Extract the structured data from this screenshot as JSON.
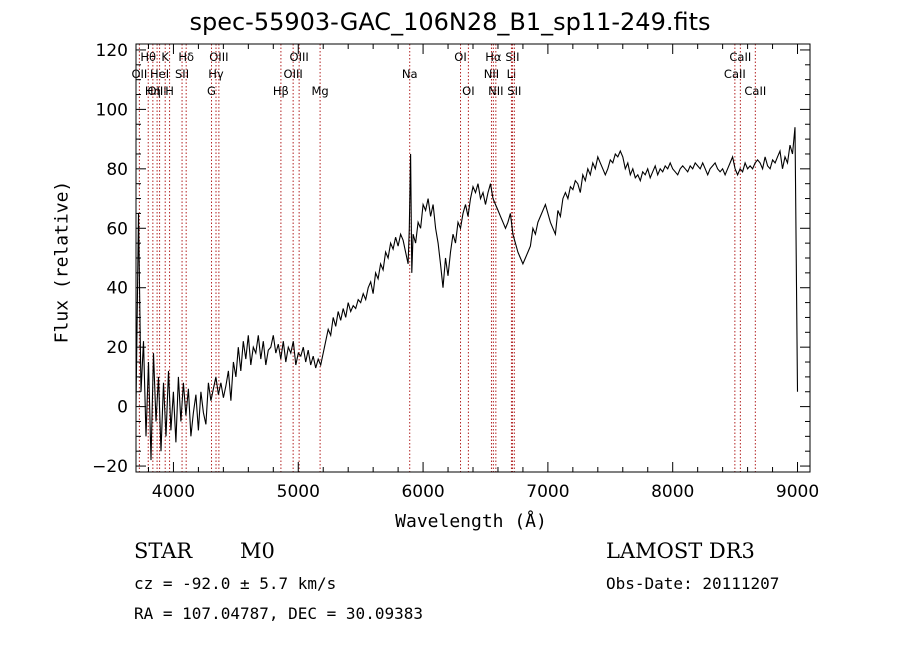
{
  "chart_data": {
    "type": "line",
    "title": "spec-55903-GAC_106N28_B1_sp11-249.fits",
    "xlabel": "Wavelength (Å)",
    "ylabel": "Flux (relative)",
    "xlim": [
      3700,
      9100
    ],
    "ylim": [
      -22,
      122
    ],
    "xticks": [
      4000,
      5000,
      6000,
      7000,
      8000,
      9000
    ],
    "yticks": [
      -20,
      0,
      20,
      40,
      60,
      80,
      100,
      120
    ],
    "series": [
      {
        "name": "flux",
        "x": [
          3700,
          3720,
          3740,
          3760,
          3780,
          3800,
          3820,
          3840,
          3860,
          3880,
          3900,
          3920,
          3940,
          3960,
          3980,
          4000,
          4020,
          4040,
          4060,
          4080,
          4100,
          4120,
          4140,
          4160,
          4180,
          4200,
          4220,
          4240,
          4260,
          4280,
          4300,
          4320,
          4340,
          4360,
          4380,
          4400,
          4420,
          4440,
          4460,
          4480,
          4500,
          4520,
          4540,
          4560,
          4580,
          4600,
          4620,
          4640,
          4660,
          4680,
          4700,
          4720,
          4740,
          4760,
          4780,
          4800,
          4820,
          4840,
          4860,
          4880,
          4900,
          4920,
          4940,
          4960,
          4980,
          5000,
          5020,
          5040,
          5060,
          5080,
          5100,
          5120,
          5140,
          5160,
          5180,
          5200,
          5220,
          5240,
          5260,
          5280,
          5300,
          5320,
          5340,
          5360,
          5380,
          5400,
          5420,
          5440,
          5460,
          5480,
          5500,
          5520,
          5540,
          5560,
          5580,
          5600,
          5620,
          5640,
          5660,
          5680,
          5700,
          5720,
          5740,
          5760,
          5780,
          5800,
          5820,
          5840,
          5860,
          5880,
          5890,
          5900,
          5910,
          5920,
          5940,
          5960,
          5980,
          6000,
          6020,
          6040,
          6060,
          6080,
          6100,
          6120,
          6140,
          6160,
          6180,
          6200,
          6220,
          6240,
          6260,
          6280,
          6300,
          6320,
          6340,
          6360,
          6380,
          6400,
          6420,
          6440,
          6460,
          6480,
          6500,
          6520,
          6540,
          6560,
          6580,
          6600,
          6620,
          6640,
          6660,
          6680,
          6700,
          6720,
          6740,
          6760,
          6780,
          6800,
          6820,
          6840,
          6860,
          6880,
          6900,
          6920,
          6940,
          6960,
          6980,
          7000,
          7020,
          7040,
          7060,
          7080,
          7100,
          7120,
          7140,
          7160,
          7180,
          7200,
          7220,
          7240,
          7260,
          7280,
          7300,
          7320,
          7340,
          7360,
          7380,
          7400,
          7420,
          7440,
          7460,
          7480,
          7500,
          7520,
          7540,
          7560,
          7580,
          7600,
          7620,
          7640,
          7660,
          7680,
          7700,
          7720,
          7740,
          7760,
          7780,
          7800,
          7820,
          7840,
          7860,
          7880,
          7900,
          7920,
          7940,
          7960,
          7980,
          8000,
          8020,
          8040,
          8060,
          8080,
          8100,
          8120,
          8140,
          8160,
          8180,
          8200,
          8220,
          8240,
          8260,
          8280,
          8300,
          8320,
          8340,
          8360,
          8380,
          8400,
          8420,
          8440,
          8460,
          8480,
          8500,
          8520,
          8540,
          8560,
          8580,
          8600,
          8620,
          8640,
          8660,
          8680,
          8700,
          8720,
          8740,
          8760,
          8780,
          8800,
          8820,
          8840,
          8860,
          8880,
          8900,
          8920,
          8940,
          8960,
          8980,
          9000
        ],
        "y": [
          0,
          65,
          5,
          22,
          -10,
          15,
          -18,
          18,
          -5,
          10,
          -15,
          8,
          -10,
          12,
          -8,
          5,
          -12,
          10,
          -5,
          8,
          -3,
          6,
          -10,
          -2,
          4,
          -8,
          5,
          -2,
          -6,
          8,
          2,
          6,
          10,
          4,
          8,
          3,
          7,
          12,
          2,
          15,
          10,
          20,
          12,
          22,
          16,
          24,
          14,
          20,
          18,
          24,
          16,
          22,
          14,
          19,
          20,
          24,
          18,
          21,
          16,
          22,
          15,
          20,
          18,
          22,
          14,
          18,
          17,
          20,
          15,
          19,
          14,
          17,
          13,
          16,
          14,
          18,
          22,
          26,
          24,
          30,
          27,
          32,
          29,
          33,
          30,
          35,
          32,
          34,
          33,
          36,
          35,
          38,
          36,
          40,
          42,
          38,
          45,
          43,
          48,
          46,
          52,
          50,
          55,
          53,
          57,
          54,
          58,
          56,
          52,
          48,
          60,
          85,
          45,
          58,
          55,
          62,
          60,
          68,
          66,
          70,
          64,
          68,
          60,
          55,
          48,
          40,
          50,
          44,
          52,
          58,
          55,
          62,
          60,
          65,
          68,
          64,
          70,
          74,
          72,
          75,
          70,
          72,
          68,
          72,
          75,
          70,
          68,
          66,
          64,
          62,
          60,
          62,
          65,
          58,
          55,
          52,
          50,
          48,
          50,
          52,
          54,
          60,
          58,
          62,
          64,
          66,
          68,
          65,
          62,
          60,
          58,
          66,
          64,
          70,
          72,
          70,
          74,
          73,
          76,
          75,
          72,
          78,
          76,
          80,
          78,
          82,
          80,
          84,
          82,
          80,
          78,
          80,
          83,
          82,
          85,
          84,
          86,
          84,
          80,
          82,
          78,
          80,
          77,
          78,
          76,
          79,
          78,
          80,
          77,
          79,
          81,
          78,
          80,
          79,
          81,
          80,
          82,
          80,
          79,
          78,
          80,
          81,
          80,
          79,
          81,
          80,
          82,
          81,
          80,
          82,
          80,
          78,
          80,
          81,
          82,
          80,
          79,
          80,
          78,
          80,
          82,
          84,
          80,
          78,
          80,
          79,
          82,
          80,
          81,
          80,
          82,
          83,
          82,
          80,
          84,
          81,
          80,
          83,
          82,
          84,
          86,
          80,
          84,
          82,
          88,
          85,
          94,
          5
        ]
      }
    ],
    "line_markers": [
      {
        "label": "OII",
        "x": 3727,
        "row": 1
      },
      {
        "label": "OIII",
        "x": 3869,
        "row": 2
      },
      {
        "label": "Hθ",
        "x": 3798,
        "row": 0
      },
      {
        "label": "K",
        "x": 3934,
        "row": 0
      },
      {
        "label": "HeI",
        "x": 3889,
        "row": 1
      },
      {
        "label": "Hη",
        "x": 3835,
        "row": 2
      },
      {
        "label": "SII",
        "x": 4069,
        "row": 1
      },
      {
        "label": "H",
        "x": 3969,
        "row": 2
      },
      {
        "label": "Hδ",
        "x": 4102,
        "row": 0
      },
      {
        "label": "OIII",
        "x": 4364,
        "row": 0
      },
      {
        "label": "Hγ",
        "x": 4341,
        "row": 1
      },
      {
        "label": "G",
        "x": 4305,
        "row": 2
      },
      {
        "label": "OIII",
        "x": 5007,
        "row": 0
      },
      {
        "label": "OIII",
        "x": 4959,
        "row": 1
      },
      {
        "label": "Hβ",
        "x": 4861,
        "row": 2
      },
      {
        "label": "Mg",
        "x": 5175,
        "row": 2
      },
      {
        "label": "Na",
        "x": 5893,
        "row": 1
      },
      {
        "label": "OI",
        "x": 6300,
        "row": 0
      },
      {
        "label": "OI",
        "x": 6363,
        "row": 2
      },
      {
        "label": "Hα",
        "x": 6563,
        "row": 0
      },
      {
        "label": "SII",
        "x": 6716,
        "row": 0
      },
      {
        "label": "NII",
        "x": 6548,
        "row": 1
      },
      {
        "label": "Li",
        "x": 6708,
        "row": 1
      },
      {
        "label": "NII",
        "x": 6583,
        "row": 2
      },
      {
        "label": "SII",
        "x": 6731,
        "row": 2
      },
      {
        "label": "CaII",
        "x": 8542,
        "row": 0
      },
      {
        "label": "CaII",
        "x": 8498,
        "row": 1
      },
      {
        "label": "CaII",
        "x": 8662,
        "row": 2
      }
    ],
    "marker_color": "#b22222"
  },
  "info": {
    "object_class": "STAR",
    "subclass": "M0",
    "survey": "LAMOST DR3",
    "cz": "cz = -92.0 ± 5.7 km/s",
    "obs_date": "Obs-Date: 20111207",
    "coords": "RA = 107.04787, DEC =  30.09383"
  }
}
